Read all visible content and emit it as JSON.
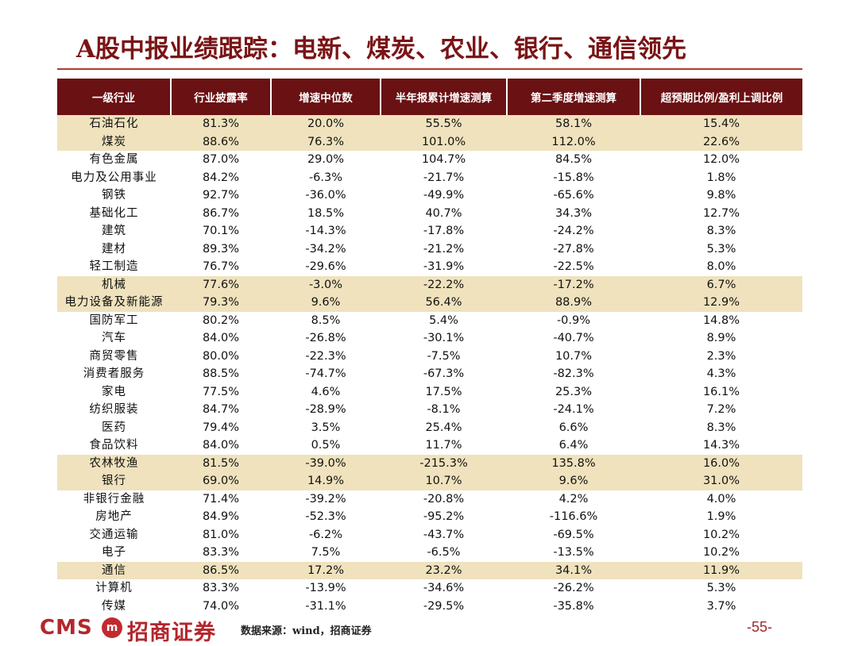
{
  "title": "A股中报业绩跟踪：电新、煤炭、农业、银行、通信领先",
  "table": {
    "headers": [
      "一级行业",
      "行业披露率",
      "增速中位数",
      "半年报累计增速测算",
      "第二季度增速测算",
      "超预期比例/盈利上调比例"
    ],
    "rows": [
      {
        "cells": [
          "石油石化",
          "81.3%",
          "20.0%",
          "55.5%",
          "58.1%",
          "15.4%"
        ],
        "highlight": true
      },
      {
        "cells": [
          "煤炭",
          "88.6%",
          "76.3%",
          "101.0%",
          "112.0%",
          "22.6%"
        ],
        "highlight": true
      },
      {
        "cells": [
          "有色金属",
          "87.0%",
          "29.0%",
          "104.7%",
          "84.5%",
          "12.0%"
        ],
        "highlight": false
      },
      {
        "cells": [
          "电力及公用事业",
          "84.2%",
          "-6.3%",
          "-21.7%",
          "-15.8%",
          "1.8%"
        ],
        "highlight": false
      },
      {
        "cells": [
          "钢铁",
          "92.7%",
          "-36.0%",
          "-49.9%",
          "-65.6%",
          "9.8%"
        ],
        "highlight": false
      },
      {
        "cells": [
          "基础化工",
          "86.7%",
          "18.5%",
          "40.7%",
          "34.3%",
          "12.7%"
        ],
        "highlight": false
      },
      {
        "cells": [
          "建筑",
          "70.1%",
          "-14.3%",
          "-17.8%",
          "-24.2%",
          "8.3%"
        ],
        "highlight": false
      },
      {
        "cells": [
          "建材",
          "89.3%",
          "-34.2%",
          "-21.2%",
          "-27.8%",
          "5.3%"
        ],
        "highlight": false
      },
      {
        "cells": [
          "轻工制造",
          "76.7%",
          "-29.6%",
          "-31.9%",
          "-22.5%",
          "8.0%"
        ],
        "highlight": false
      },
      {
        "cells": [
          "机械",
          "77.6%",
          "-3.0%",
          "-22.2%",
          "-17.2%",
          "6.7%"
        ],
        "highlight": true
      },
      {
        "cells": [
          "电力设备及新能源",
          "79.3%",
          "9.6%",
          "56.4%",
          "88.9%",
          "12.9%"
        ],
        "highlight": true
      },
      {
        "cells": [
          "国防军工",
          "80.2%",
          "8.5%",
          "5.4%",
          "-0.9%",
          "14.8%"
        ],
        "highlight": false
      },
      {
        "cells": [
          "汽车",
          "84.0%",
          "-26.8%",
          "-30.1%",
          "-40.7%",
          "8.9%"
        ],
        "highlight": false
      },
      {
        "cells": [
          "商贸零售",
          "80.0%",
          "-22.3%",
          "-7.5%",
          "10.7%",
          "2.3%"
        ],
        "highlight": false
      },
      {
        "cells": [
          "消费者服务",
          "88.5%",
          "-74.7%",
          "-67.3%",
          "-82.3%",
          "4.3%"
        ],
        "highlight": false
      },
      {
        "cells": [
          "家电",
          "77.5%",
          "4.6%",
          "17.5%",
          "25.3%",
          "16.1%"
        ],
        "highlight": false
      },
      {
        "cells": [
          "纺织服装",
          "84.7%",
          "-28.9%",
          "-8.1%",
          "-24.1%",
          "7.2%"
        ],
        "highlight": false
      },
      {
        "cells": [
          "医药",
          "79.4%",
          "3.5%",
          "25.4%",
          "6.6%",
          "8.3%"
        ],
        "highlight": false
      },
      {
        "cells": [
          "食品饮料",
          "84.0%",
          "0.5%",
          "11.7%",
          "6.4%",
          "14.3%"
        ],
        "highlight": false
      },
      {
        "cells": [
          "农林牧渔",
          "81.5%",
          "-39.0%",
          "-215.3%",
          "135.8%",
          "16.0%"
        ],
        "highlight": true
      },
      {
        "cells": [
          "银行",
          "69.0%",
          "14.9%",
          "10.7%",
          "9.6%",
          "31.0%"
        ],
        "highlight": true
      },
      {
        "cells": [
          "非银行金融",
          "71.4%",
          "-39.2%",
          "-20.8%",
          "4.2%",
          "4.0%"
        ],
        "highlight": false
      },
      {
        "cells": [
          "房地产",
          "84.9%",
          "-52.3%",
          "-95.2%",
          "-116.6%",
          "1.9%"
        ],
        "highlight": false
      },
      {
        "cells": [
          "交通运输",
          "81.0%",
          "-6.2%",
          "-43.7%",
          "-69.5%",
          "10.2%"
        ],
        "highlight": false
      },
      {
        "cells": [
          "电子",
          "83.3%",
          "7.5%",
          "-6.5%",
          "-13.5%",
          "10.2%"
        ],
        "highlight": false
      },
      {
        "cells": [
          "通信",
          "86.5%",
          "17.2%",
          "23.2%",
          "34.1%",
          "11.9%"
        ],
        "highlight": true
      },
      {
        "cells": [
          "计算机",
          "83.3%",
          "-13.9%",
          "-34.6%",
          "-26.2%",
          "5.3%"
        ],
        "highlight": false
      },
      {
        "cells": [
          "传媒",
          "74.0%",
          "-31.1%",
          "-29.5%",
          "-35.8%",
          "3.7%"
        ],
        "highlight": false
      }
    ]
  },
  "footer": {
    "logo_text": "CMS",
    "logo_mark": "m",
    "company": "招商证券",
    "source": "数据来源：wind，招商证券",
    "page": "-55-"
  },
  "colors": {
    "title": "#7a1416",
    "header_bg": "#6a1113",
    "highlight_row": "#efe2bd",
    "brand_red": "#b5262d"
  }
}
